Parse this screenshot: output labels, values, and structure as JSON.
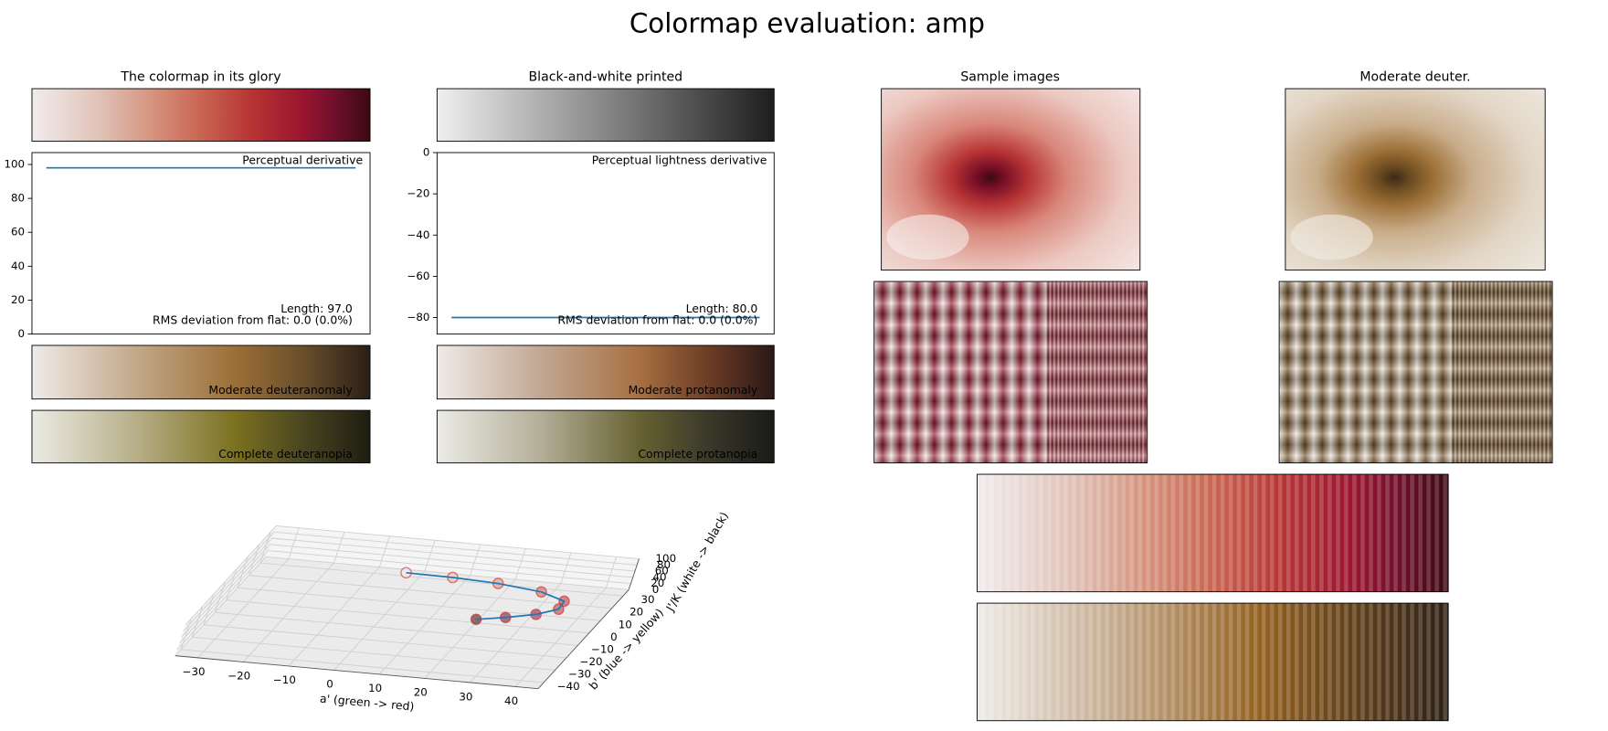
{
  "title": "Colormap evaluation: amp",
  "chart_data": [
    {
      "type": "line",
      "title": "The colormap in its glory",
      "annotation": "Perceptual derivative",
      "notes": [
        "Length: 97.0",
        "RMS deviation from flat: 0.0 (0.0%)"
      ],
      "values": [
        98,
        98
      ],
      "color": "#1f77b4",
      "ylim": [
        0,
        107
      ],
      "yticks": [
        0,
        20,
        40,
        60,
        80,
        100
      ]
    },
    {
      "type": "line",
      "title": "Black-and-white printed",
      "annotation": "Perceptual lightness derivative",
      "notes": [
        "Length: 80.0",
        "RMS deviation from flat: 0.0 (0.0%)"
      ],
      "values": [
        -80,
        -80
      ],
      "color": "#1f77b4",
      "ylim": [
        -88,
        0
      ],
      "yticks": [
        0,
        {
          "value": -20,
          "label": "−20"
        },
        {
          "value": -40,
          "label": "−40"
        },
        {
          "value": -60,
          "label": "−60"
        },
        {
          "value": -80,
          "label": "−80"
        }
      ]
    },
    {
      "type": "line3d",
      "xlabel": "a' (green -> red)",
      "ylabel": "b' (blue -> yellow)",
      "zlabel": "J'/K (white -> black)",
      "x": [
        0,
        10,
        20,
        30,
        36,
        36,
        32,
        26,
        20
      ],
      "y": [
        10,
        12,
        13,
        12,
        9,
        5,
        2,
        0,
        -1
      ],
      "z": [
        95,
        85,
        75,
        65,
        55,
        45,
        35,
        25,
        15
      ],
      "color": "#1f77b4",
      "xlim": [
        -35,
        45
      ],
      "ylim": [
        -45,
        35
      ],
      "zlim": [
        0,
        100
      ],
      "xticks": [
        {
          "value": -30,
          "label": "−30"
        },
        {
          "value": -20,
          "label": "−20"
        },
        {
          "value": -10,
          "label": "−10"
        },
        0,
        10,
        20,
        30,
        40
      ],
      "yticks": [
        {
          "value": -40,
          "label": "−40"
        },
        {
          "value": -30,
          "label": "−30"
        },
        {
          "value": -20,
          "label": "−20"
        },
        {
          "value": -10,
          "label": "−10"
        },
        0,
        10,
        20,
        30
      ],
      "zticks": [
        0,
        20,
        40,
        60,
        80,
        100
      ]
    }
  ],
  "strip_labels": [
    "Moderate deuteranomaly",
    "Complete deuteranopia",
    "Moderate protanomaly",
    "Complete protanopia"
  ],
  "image_titles": [
    "Sample images",
    "Moderate deuter."
  ]
}
